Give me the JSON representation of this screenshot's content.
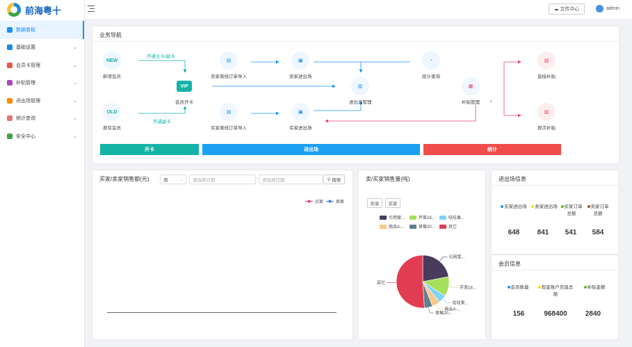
{
  "app": {
    "name": "前海粤十"
  },
  "sidebar": {
    "items": [
      {
        "label": "数据看板",
        "color": "#1890ff",
        "active": true,
        "arrow": ""
      },
      {
        "label": "基础设置",
        "color": "#1e88e5",
        "arrow": "⌄"
      },
      {
        "label": "会员卡管理",
        "color": "#ef5350",
        "arrow": "⌄"
      },
      {
        "label": "补贴管理",
        "color": "#ab47bc",
        "arrow": "⌄"
      },
      {
        "label": "进出场管理",
        "color": "#fb8c00",
        "arrow": "⌄"
      },
      {
        "label": "统计查询",
        "color": "#e57373",
        "arrow": "⌄"
      },
      {
        "label": "安全中心",
        "color": "#43a047",
        "arrow": "⌄"
      }
    ]
  },
  "topbar": {
    "file_center": "文件中心",
    "user": "admin"
  },
  "nav": {
    "title": "业务导航",
    "nodes": {
      "new_member": {
        "label": "新增会员",
        "badge": "NEW"
      },
      "old_member": {
        "label": "原有会员",
        "badge": "OLD"
      },
      "member_card": {
        "label": "会员开卡",
        "badge": "VIP"
      },
      "seller_import": {
        "label": "卖家离线订单导入"
      },
      "buyer_import": {
        "label": "买家离线订单导入"
      },
      "seller_entry": {
        "label": "卖家进出场"
      },
      "buyer_entry": {
        "label": "买家进出场"
      },
      "entry_mgmt": {
        "label": "进出场管理"
      },
      "stats": {
        "label": "统计查询"
      },
      "subsidy_mgmt": {
        "label": "补贴管理"
      },
      "direct_subsidy": {
        "label": "直接补贴"
      },
      "times_subsidy": {
        "label": "按次补贴"
      }
    },
    "links": {
      "main_card": "开通主卡/副卡",
      "sub_card": "开通副卡"
    },
    "bars": {
      "open_card": "开卡",
      "entry": "进出场",
      "stats": "统计"
    }
  },
  "sales_amount": {
    "title": "买家/卖家销售额(元)",
    "period": "周",
    "date_placeholder_start": "请选择日期",
    "date_placeholder_end": "请选择日期",
    "search": "搜索",
    "legend": [
      {
        "name": "买家",
        "color": "#e8436b"
      },
      {
        "name": "卖家",
        "color": "#3a7bd5"
      }
    ]
  },
  "sales_volume": {
    "title": "卖/买家销售量(吨)",
    "buttons": [
      "卖家",
      "买家"
    ],
    "legend": [
      {
        "name": "引用案...",
        "color": "#4a3b5c"
      },
      {
        "name": "芹菜18...",
        "color": "#a5e05a"
      },
      {
        "name": "哇哇果...",
        "color": "#7fd3f7"
      },
      {
        "name": "商品A-...",
        "color": "#f7c98b"
      },
      {
        "name": "草莓20...",
        "color": "#5f8190"
      },
      {
        "name": "其它",
        "color": "#e23c52"
      }
    ]
  },
  "chart_data": {
    "type": "pie",
    "categories": [
      "引用案...",
      "芹菜18...",
      "哇哇果...",
      "商品A-...",
      "草莓20...",
      "其它"
    ],
    "values": [
      22,
      12,
      5,
      5,
      5,
      51
    ],
    "colors": [
      "#4a3b5c",
      "#a5e05a",
      "#7fd3f7",
      "#f7c98b",
      "#5f8190",
      "#e23c52"
    ]
  },
  "entry_info": {
    "title": "进出场信息",
    "stats": [
      {
        "label": "买家进出场",
        "value": "648",
        "color": "#1890ff"
      },
      {
        "label": "卖家进出场",
        "value": "841",
        "color": "#fadb14"
      },
      {
        "label": "买家订单总额",
        "value": "541",
        "color": "#52c41a"
      },
      {
        "label": "卖家订单总额",
        "value": "584",
        "color": "#a0522d"
      }
    ]
  },
  "member_info": {
    "title": "会员信息",
    "stats": [
      {
        "label": "会员数量",
        "value": "156",
        "color": "#1890ff"
      },
      {
        "label": "现金账户充值总额",
        "value": "968400",
        "color": "#fadb14"
      },
      {
        "label": "补贴金额",
        "value": "2840",
        "color": "#52c41a"
      }
    ]
  }
}
